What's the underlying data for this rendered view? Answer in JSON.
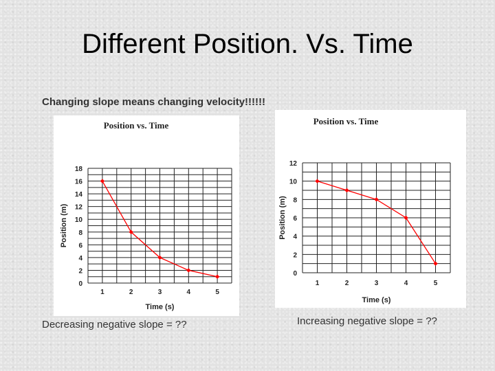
{
  "slide": {
    "title": "Different Position. Vs. Time",
    "subtitle": "Changing slope means changing velocity!!!!!!",
    "caption_left": "Decreasing negative slope = ??",
    "caption_right": "Increasing negative slope = ??"
  },
  "colors": {
    "line": "#ff0000",
    "grid": "#222222",
    "background": "#ffffff"
  },
  "chart_data": [
    {
      "type": "line",
      "title": "Position vs. Time",
      "xlabel": "Time (s)",
      "ylabel": "Position (m)",
      "x": [
        1,
        2,
        3,
        4,
        5
      ],
      "series": [
        {
          "values": [
            16,
            8,
            4,
            2,
            1
          ]
        }
      ],
      "xlim": [
        0.5,
        5.5
      ],
      "ylim": [
        0,
        18
      ],
      "xticks": [
        "1",
        "2",
        "3",
        "4",
        "5"
      ],
      "yticks": [
        "0",
        "2",
        "4",
        "6",
        "8",
        "10",
        "12",
        "14",
        "16",
        "18"
      ],
      "grid": true
    },
    {
      "type": "line",
      "title": "Position  vs. Time",
      "xlabel": "Time (s)",
      "ylabel": "Position (m)",
      "x": [
        1,
        2,
        3,
        4,
        5
      ],
      "series": [
        {
          "values": [
            10,
            9,
            8,
            6,
            1
          ]
        }
      ],
      "xlim": [
        0.5,
        5.5
      ],
      "ylim": [
        0,
        12
      ],
      "xticks": [
        "1",
        "2",
        "3",
        "4",
        "5"
      ],
      "yticks": [
        "0",
        "2",
        "4",
        "6",
        "8",
        "10",
        "12"
      ],
      "grid": true
    }
  ]
}
